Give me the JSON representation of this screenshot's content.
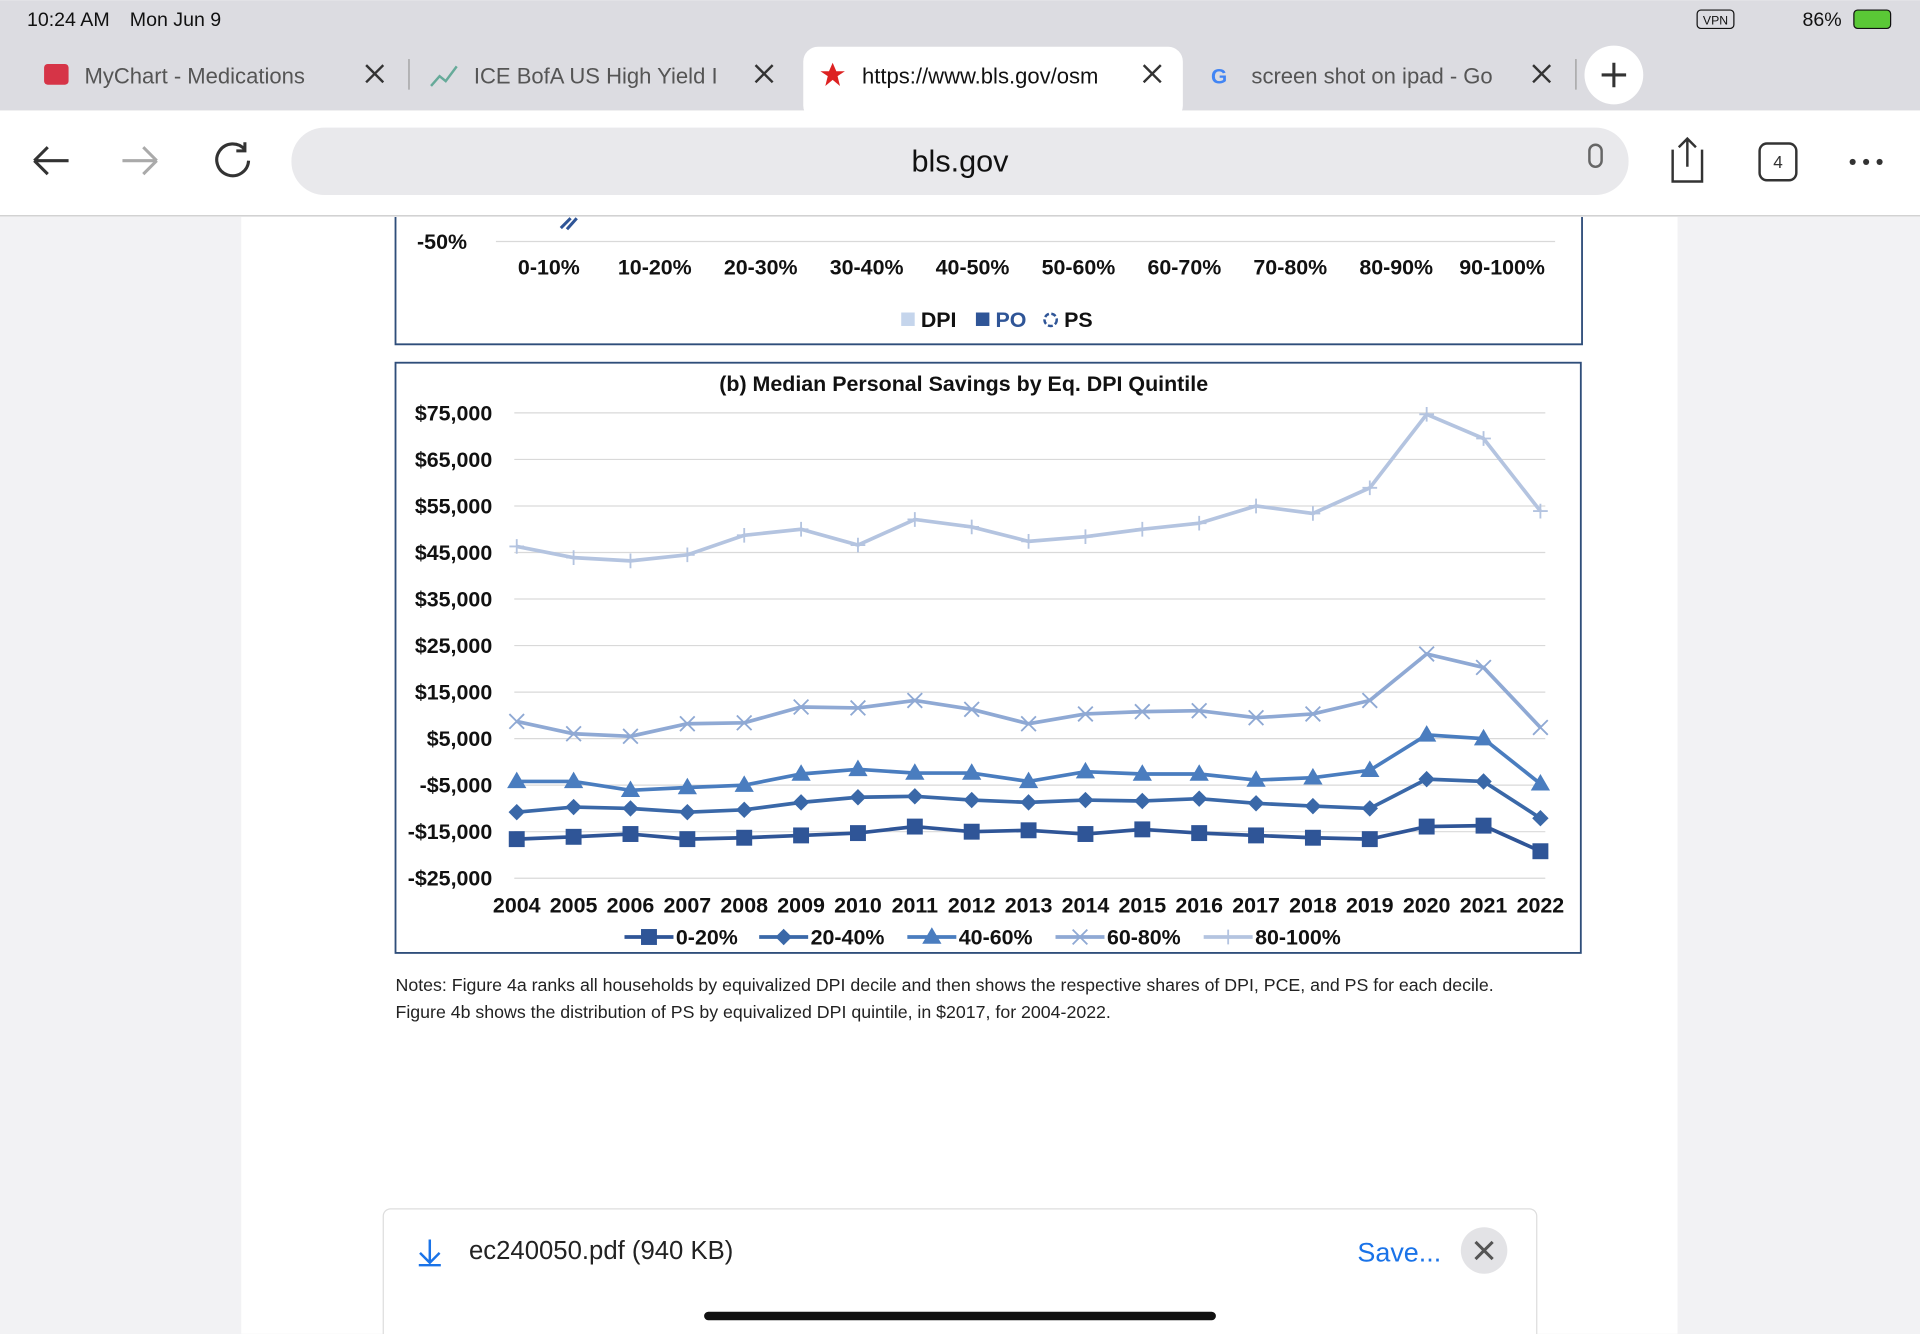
{
  "status_bar": {
    "time": "10:24 AM",
    "date": "Mon Jun 9",
    "vpn": "VPN",
    "battery": "86%"
  },
  "tabs": [
    {
      "title": "MyChart - Medications"
    },
    {
      "title": "ICE BofA US High Yield I"
    },
    {
      "title": "https://www.bls.gov/osm"
    },
    {
      "favicon_letter": "G",
      "title": "screen shot on ipad - Go"
    }
  ],
  "address_bar": {
    "url": "bls.gov",
    "tab_count": 4
  },
  "figure_a": {
    "y_tick": "-50%",
    "categories": [
      "0-10%",
      "10-20%",
      "20-30%",
      "30-40%",
      "40-50%",
      "50-60%",
      "60-70%",
      "70-80%",
      "80-90%",
      "90-100%"
    ],
    "legend": [
      "DPI",
      "PO",
      "PS"
    ]
  },
  "chart_data": {
    "type": "line",
    "title": "(b) Median Personal Savings by Eq. DPI Quintile",
    "categories": [
      "2004",
      "2005",
      "2006",
      "2007",
      "2008",
      "2009",
      "2010",
      "2011",
      "2012",
      "2013",
      "2014",
      "2015",
      "2016",
      "2017",
      "2018",
      "2019",
      "2020",
      "2021",
      "2022"
    ],
    "ylim": [
      -25000,
      75000
    ],
    "yticks": [
      {
        "value": 75000,
        "label": "$75,000"
      },
      {
        "value": 65000,
        "label": "$65,000"
      },
      {
        "value": 55000,
        "label": "$55,000"
      },
      {
        "value": 45000,
        "label": "$45,000"
      },
      {
        "value": 35000,
        "label": "$35,000"
      },
      {
        "value": 25000,
        "label": "$25,000"
      },
      {
        "value": 15000,
        "label": "$15,000"
      },
      {
        "value": 5000,
        "label": "$5,000"
      },
      {
        "value": -5000,
        "label": "-$5,000"
      },
      {
        "value": -15000,
        "label": "-$15,000"
      },
      {
        "value": -25000,
        "label": "-$25,000"
      }
    ],
    "grid": true,
    "series": [
      {
        "name": "0-20%",
        "color": "#2f5597",
        "marker": "square",
        "values": [
          -16600,
          -16100,
          -15500,
          -16600,
          -16300,
          -15800,
          -15300,
          -13900,
          -15000,
          -14700,
          -15500,
          -14500,
          -15300,
          -15800,
          -16300,
          -16600,
          -13900,
          -13700,
          -19200
        ]
      },
      {
        "name": "20-40%",
        "color": "#3a68a8",
        "marker": "diamond",
        "values": [
          -10800,
          -9700,
          -10000,
          -10800,
          -10300,
          -8700,
          -7600,
          -7400,
          -8200,
          -8700,
          -8200,
          -8400,
          -7900,
          -8900,
          -9500,
          -10000,
          -3700,
          -4200,
          -12100
        ]
      },
      {
        "name": "40-60%",
        "color": "#4a7dbf",
        "marker": "triangle",
        "values": [
          -4200,
          -4200,
          -6100,
          -5500,
          -5000,
          -2600,
          -1600,
          -2400,
          -2400,
          -4200,
          -2100,
          -2600,
          -2600,
          -3900,
          -3400,
          -1800,
          5800,
          5000,
          -4700
        ]
      },
      {
        "name": "60-80%",
        "color": "#8fa9d4",
        "marker": "x",
        "values": [
          8700,
          6050,
          5500,
          8200,
          8400,
          11800,
          11600,
          13200,
          11300,
          8200,
          10300,
          10800,
          11000,
          9500,
          10300,
          13200,
          23200,
          20300,
          7400
        ]
      },
      {
        "name": "80-100%",
        "color": "#b4c4e0",
        "marker": "plus",
        "values": [
          46300,
          43900,
          43200,
          44500,
          48700,
          50000,
          46600,
          52100,
          50500,
          47400,
          48400,
          50000,
          51300,
          55000,
          53400,
          58900,
          74700,
          69500,
          53900
        ]
      }
    ]
  },
  "notes": [
    "Notes: Figure 4a ranks all households by equivalized DPI decile and then shows the respective shares of DPI, PCE, and PS for each decile.",
    "Figure 4b shows the distribution of PS by equivalized DPI quintile, in $2017, for 2004-2022."
  ],
  "download": {
    "file": "ec240050.pdf (940 KB)",
    "action": "Save..."
  }
}
